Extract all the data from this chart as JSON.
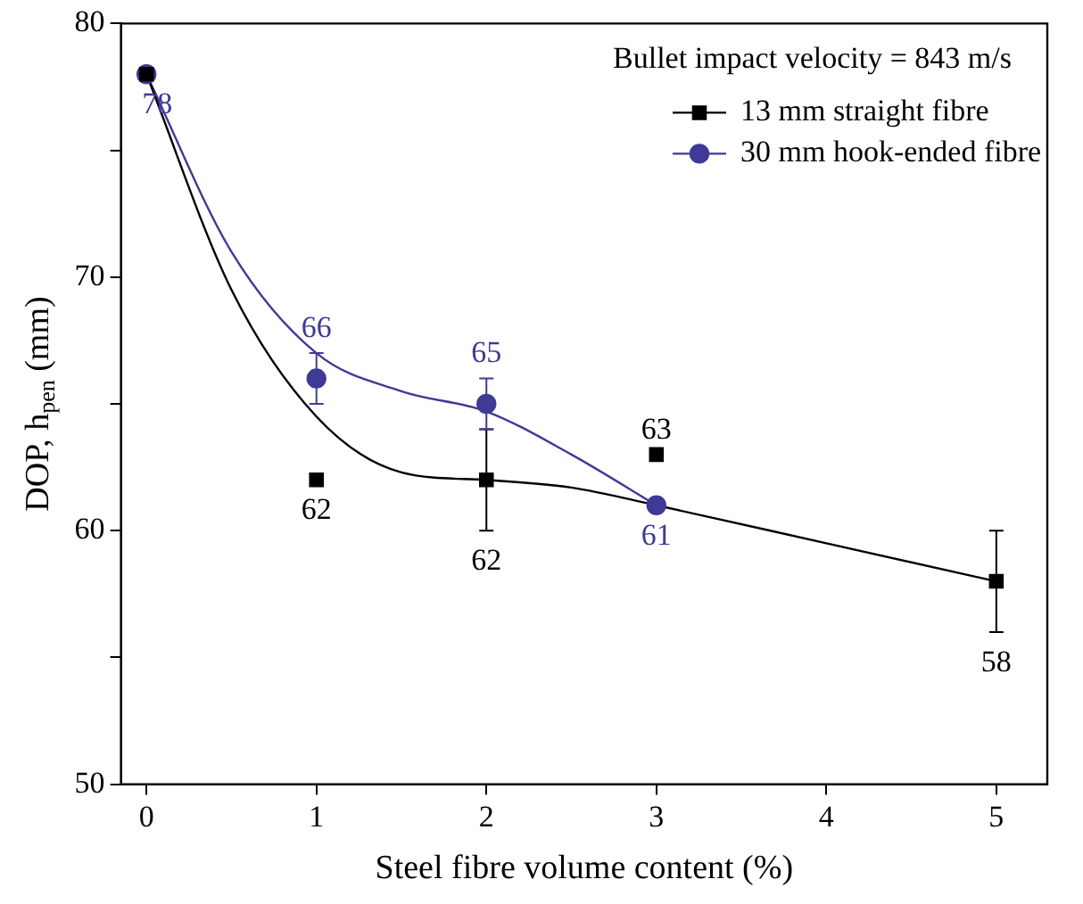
{
  "chart_data": {
    "type": "scatter",
    "xlabel": "Steel fibre volume content (%)",
    "ylabel": "DOP, h$_{pen}$ (mm)",
    "xlim": [
      -0.15,
      5.3
    ],
    "xticks": [
      0,
      1,
      2,
      3,
      4,
      5
    ],
    "ylim": [
      50,
      80
    ],
    "yticks": [
      50,
      {
        "value": 55,
        "label": null
      },
      60,
      {
        "value": 65,
        "label": null
      },
      70,
      {
        "value": 75,
        "label": null
      },
      80
    ],
    "grid": false,
    "legend": "top right",
    "annotations": [
      "Bullet impact velocity = 843 m/s"
    ],
    "series": [
      {
        "name": "13 mm straight fibre",
        "color": "#000000",
        "marker": "square",
        "x": [
          0,
          1,
          2,
          3,
          5
        ],
        "values": [
          78,
          62,
          62,
          63,
          58
        ],
        "errors": [
          null,
          null,
          2,
          null,
          2
        ],
        "value_labels": [
          null,
          "62",
          "62",
          "63",
          "58"
        ]
      },
      {
        "name": "30 mm hook-ended fibre",
        "color": "#3f3a96",
        "marker": "circle",
        "x": [
          0,
          1,
          2,
          3
        ],
        "values": [
          78,
          66,
          65,
          61
        ],
        "errors": [
          null,
          1,
          1,
          null
        ],
        "value_labels": [
          "78",
          "66",
          "65",
          "61"
        ]
      },
      {
        "type": "line",
        "color": "#000000",
        "marker": "none",
        "x": [
          0,
          0.5,
          1,
          1.5,
          2,
          2.5,
          3,
          4,
          5
        ],
        "values": [
          78,
          69.5,
          64.5,
          62.3,
          62,
          61.7,
          61,
          59.5,
          58
        ]
      },
      {
        "type": "line",
        "color": "#3f3a96",
        "marker": "none",
        "x": [
          0,
          0.5,
          1,
          1.5,
          2,
          2.5,
          3
        ],
        "values": [
          78,
          71,
          67,
          65.5,
          64.7,
          63,
          61
        ]
      }
    ]
  }
}
